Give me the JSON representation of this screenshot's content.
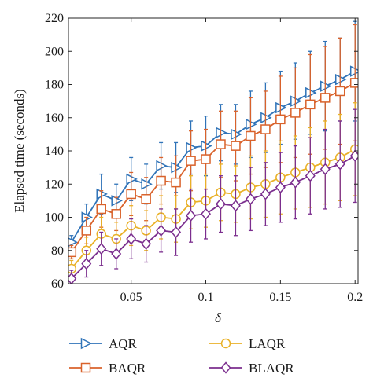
{
  "chart_data": {
    "type": "line",
    "xlabel": "δ",
    "ylabel": "Elapsed time (seconds)",
    "xlim": [
      0.008,
      0.202
    ],
    "ylim": [
      60,
      220
    ],
    "x_ticks": [
      0.05,
      0.1,
      0.15,
      0.2
    ],
    "x_tick_labels": [
      "0.05",
      "0.1",
      "0.15",
      "0.2"
    ],
    "y_ticks": [
      60,
      80,
      100,
      120,
      140,
      160,
      180,
      200,
      220
    ],
    "grid": false,
    "legend_position": "bottom",
    "x": [
      0.01,
      0.02,
      0.03,
      0.04,
      0.05,
      0.06,
      0.07,
      0.08,
      0.09,
      0.1,
      0.11,
      0.12,
      0.13,
      0.14,
      0.15,
      0.16,
      0.17,
      0.18,
      0.19,
      0.2
    ],
    "series": [
      {
        "name": "AQR",
        "color": "#2f73b8",
        "marker": "triangle-right",
        "values": [
          85,
          100,
          114,
          110,
          123,
          120,
          131,
          130,
          142,
          143,
          151,
          150,
          156,
          160,
          166,
          170,
          175,
          179,
          183,
          188
        ],
        "error": [
          4,
          8,
          12,
          10,
          13,
          12,
          14,
          15,
          16,
          18,
          17,
          18,
          20,
          21,
          22,
          23,
          25,
          27,
          25,
          30
        ]
      },
      {
        "name": "BAQR",
        "color": "#d9622b",
        "marker": "square",
        "values": [
          79,
          92,
          105,
          102,
          114,
          111,
          122,
          121,
          134,
          135,
          144,
          143,
          149,
          153,
          159,
          163,
          168,
          172,
          176,
          181
        ],
        "error": [
          4,
          8,
          11,
          10,
          13,
          13,
          14,
          16,
          18,
          18,
          20,
          21,
          23,
          23,
          26,
          27,
          30,
          31,
          32,
          35
        ]
      },
      {
        "name": "LAQR",
        "color": "#e9b127",
        "marker": "circle",
        "values": [
          69,
          80,
          90,
          87,
          95,
          92,
          100,
          99,
          109,
          110,
          115,
          114,
          118,
          120,
          124,
          127,
          130,
          133,
          136,
          141
        ],
        "error": [
          5,
          8,
          10,
          10,
          12,
          12,
          13,
          14,
          16,
          16,
          17,
          17,
          19,
          20,
          22,
          22,
          24,
          25,
          26,
          28
        ]
      },
      {
        "name": "BLAQR",
        "color": "#7b2e8e",
        "marker": "diamond",
        "values": [
          63,
          72,
          81,
          78,
          87,
          84,
          92,
          91,
          101,
          102,
          108,
          107,
          111,
          114,
          118,
          121,
          125,
          129,
          132,
          137
        ],
        "error": [
          5,
          8,
          10,
          9,
          12,
          11,
          13,
          14,
          16,
          15,
          17,
          18,
          19,
          19,
          21,
          22,
          23,
          24,
          26,
          28
        ]
      }
    ]
  }
}
